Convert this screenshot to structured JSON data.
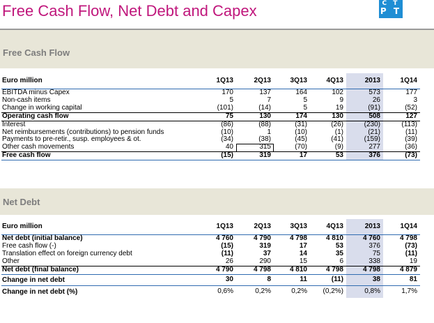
{
  "title": "Free Cash Flow, Net Debt and Capex",
  "logo": {
    "row1": "C T",
    "row2": "P T"
  },
  "colors": {
    "title": "#c0177c",
    "band": "#e8e6d8",
    "highlight": "#d9ddec",
    "rule": "#2f6bb0"
  },
  "fcf": {
    "section_title": "Free Cash Flow",
    "headers": [
      "Euro million",
      "1Q13",
      "2Q13",
      "3Q13",
      "4Q13",
      "2013",
      "1Q14"
    ],
    "rows": [
      {
        "label": "EBITDA minus Capex",
        "values": [
          "170",
          "137",
          "164",
          "102",
          "573",
          "177"
        ]
      },
      {
        "label": "Non-cash items",
        "values": [
          "5",
          "7",
          "5",
          "9",
          "26",
          "3"
        ]
      },
      {
        "label": "Change in working capital",
        "values": [
          "(101)",
          "(14)",
          "5",
          "19",
          "(91)",
          "(52)"
        ]
      },
      {
        "label": "Operating cash flow",
        "values": [
          "75",
          "130",
          "174",
          "130",
          "508",
          "127"
        ]
      },
      {
        "label": "Interest",
        "values": [
          "(86)",
          "(88)",
          "(31)",
          "(26)",
          "(230)",
          "(113)"
        ]
      },
      {
        "label": "Net reimbursements (contributions) to pension funds",
        "values": [
          "(10)",
          "1",
          "(10)",
          "(1)",
          "(21)",
          "(11)"
        ]
      },
      {
        "label": "Payments to pre-retir., susp. employees & ot.",
        "values": [
          "(34)",
          "(38)",
          "(45)",
          "(41)",
          "(159)",
          "(39)"
        ]
      },
      {
        "label": "Other cash movements",
        "values": [
          "40",
          "315",
          "(70)",
          "(9)",
          "277",
          "(36)"
        ]
      },
      {
        "label": "Free cash flow",
        "values": [
          "(15)",
          "319",
          "17",
          "53",
          "376",
          "(73)"
        ]
      }
    ]
  },
  "nd": {
    "section_title": "Net Debt",
    "headers": [
      "Euro million",
      "1Q13",
      "2Q13",
      "3Q13",
      "4Q13",
      "2013",
      "1Q14"
    ],
    "rows": [
      {
        "label": "Net debt (initial balance)",
        "values": [
          "4 760",
          "4 790",
          "4 798",
          "4 810",
          "4 760",
          "4 798"
        ]
      },
      {
        "label": "Free cash flow (-)",
        "values": [
          "(15)",
          "319",
          "17",
          "53",
          "376",
          "(73)"
        ]
      },
      {
        "label": "Translation effect on foreign currency debt",
        "values": [
          "(11)",
          "37",
          "14",
          "35",
          "75",
          "(11)"
        ]
      },
      {
        "label": "Other",
        "values": [
          "26",
          "290",
          "15",
          "6",
          "338",
          "19"
        ]
      },
      {
        "label": "Net debt (final balance)",
        "values": [
          "4 790",
          "4 798",
          "4 810",
          "4 798",
          "4 798",
          "4 879"
        ]
      },
      {
        "label": "Change in net debt",
        "values": [
          "30",
          "8",
          "11",
          "(11)",
          "38",
          "81"
        ]
      },
      {
        "label": "Change in net debt (%)",
        "values": [
          "0,6%",
          "0,2%",
          "0,2%",
          "(0,2%)",
          "0,8%",
          "1,7%"
        ]
      }
    ]
  }
}
